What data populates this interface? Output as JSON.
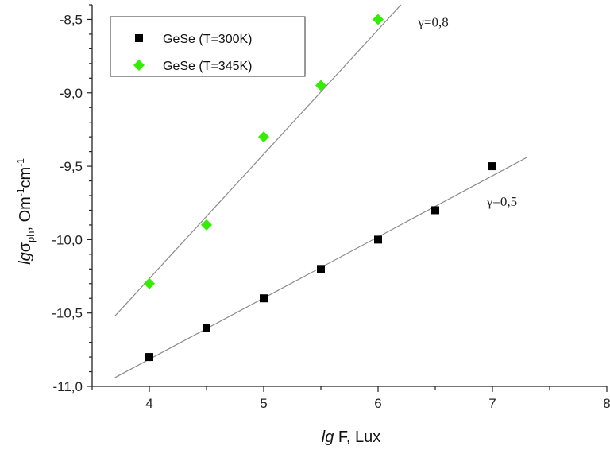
{
  "chart_data": {
    "type": "scatter",
    "title": "",
    "xlabel": {
      "prefix": "lg",
      "rest": " F, Lux"
    },
    "ylabel": {
      "prefix": "lg",
      "sigma": "σ",
      "sub": "ph",
      "rest": ", Om",
      "sup1": "-1",
      "mid": "cm",
      "sup2": "-1"
    },
    "xlim": [
      3.5,
      8
    ],
    "ylim": [
      -11.0,
      -8.4
    ],
    "xticks": [
      4,
      5,
      6,
      7,
      8
    ],
    "xtick_labels": [
      "4",
      "5",
      "6",
      "7",
      "8"
    ],
    "yticks": [
      -11.0,
      -10.5,
      -10.0,
      -9.5,
      -9.0,
      -8.5
    ],
    "ytick_labels": [
      "-11,0",
      "-10,5",
      "-10,0",
      "-9,5",
      "-9,0",
      "-8,5"
    ],
    "grid": false,
    "legend_position": "top-left",
    "series": [
      {
        "name": "GeSe  (T=300K)",
        "marker": "square",
        "color": "#000000",
        "x": [
          4,
          4.5,
          5,
          5.5,
          6,
          6.5,
          7
        ],
        "y": [
          -10.8,
          -10.6,
          -10.4,
          -10.2,
          -10.0,
          -9.8,
          -9.5
        ],
        "fit": {
          "x": [
            3.7,
            7.3
          ],
          "y": [
            -10.94,
            -9.44
          ]
        }
      },
      {
        "name": "GeSe  (T=345K)",
        "marker": "diamond",
        "color": "#33ee00",
        "x": [
          4,
          4.5,
          5,
          5.5,
          6
        ],
        "y": [
          -10.3,
          -9.9,
          -9.3,
          -8.95,
          -8.5
        ],
        "fit": {
          "x": [
            3.7,
            6.2
          ],
          "y": [
            -10.52,
            -8.4
          ]
        }
      }
    ],
    "annotations": [
      {
        "text": "γ=0,8",
        "x": 6.35,
        "y": -8.55
      },
      {
        "text": "γ=0,5",
        "x": 6.95,
        "y": -9.77
      }
    ]
  }
}
